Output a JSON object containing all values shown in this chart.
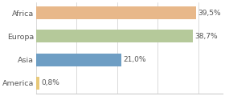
{
  "categories": [
    "America",
    "Asia",
    "Europa",
    "Africa"
  ],
  "values": [
    0.8,
    21.0,
    38.7,
    39.5
  ],
  "labels": [
    "0,8%",
    "21,0%",
    "38,7%",
    "39,5%"
  ],
  "bar_colors": [
    "#e8c97a",
    "#6e9ec4",
    "#b5c99a",
    "#e8b88a"
  ],
  "background_color": "#ffffff",
  "xlim": [
    0,
    46
  ],
  "label_fontsize": 6.5,
  "tick_fontsize": 6.8,
  "bar_height": 0.55,
  "grid_color": "#cccccc",
  "grid_xticks": [
    0,
    10,
    20,
    30,
    40
  ],
  "text_color": "#555555",
  "bottom_spine_color": "#cccccc"
}
